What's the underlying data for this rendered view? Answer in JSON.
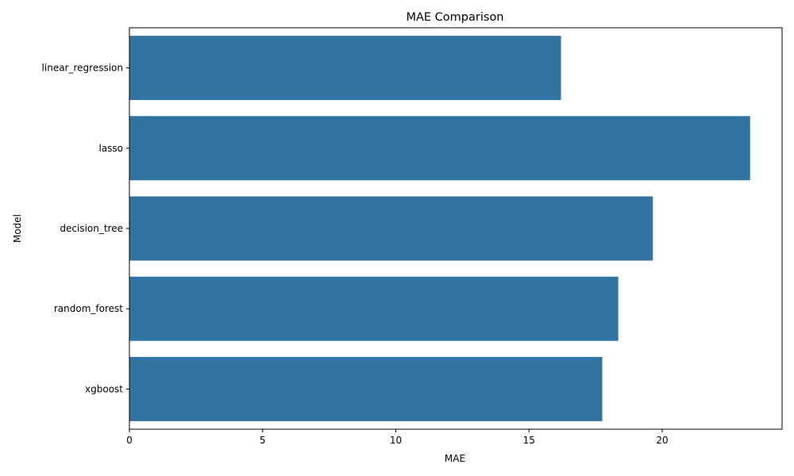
{
  "chart_data": {
    "type": "bar",
    "orientation": "horizontal",
    "title": "MAE Comparison",
    "xlabel": "MAE",
    "ylabel": "Model",
    "categories": [
      "linear_regression",
      "lasso",
      "decision_tree",
      "random_forest",
      "xgboost"
    ],
    "values": [
      16.2,
      23.3,
      19.65,
      18.35,
      17.75
    ],
    "xlim": [
      0,
      24.5
    ],
    "xticks": [
      0,
      5,
      10,
      15,
      20
    ],
    "bar_color": "#3274a1",
    "grid": false,
    "legend": "none"
  }
}
